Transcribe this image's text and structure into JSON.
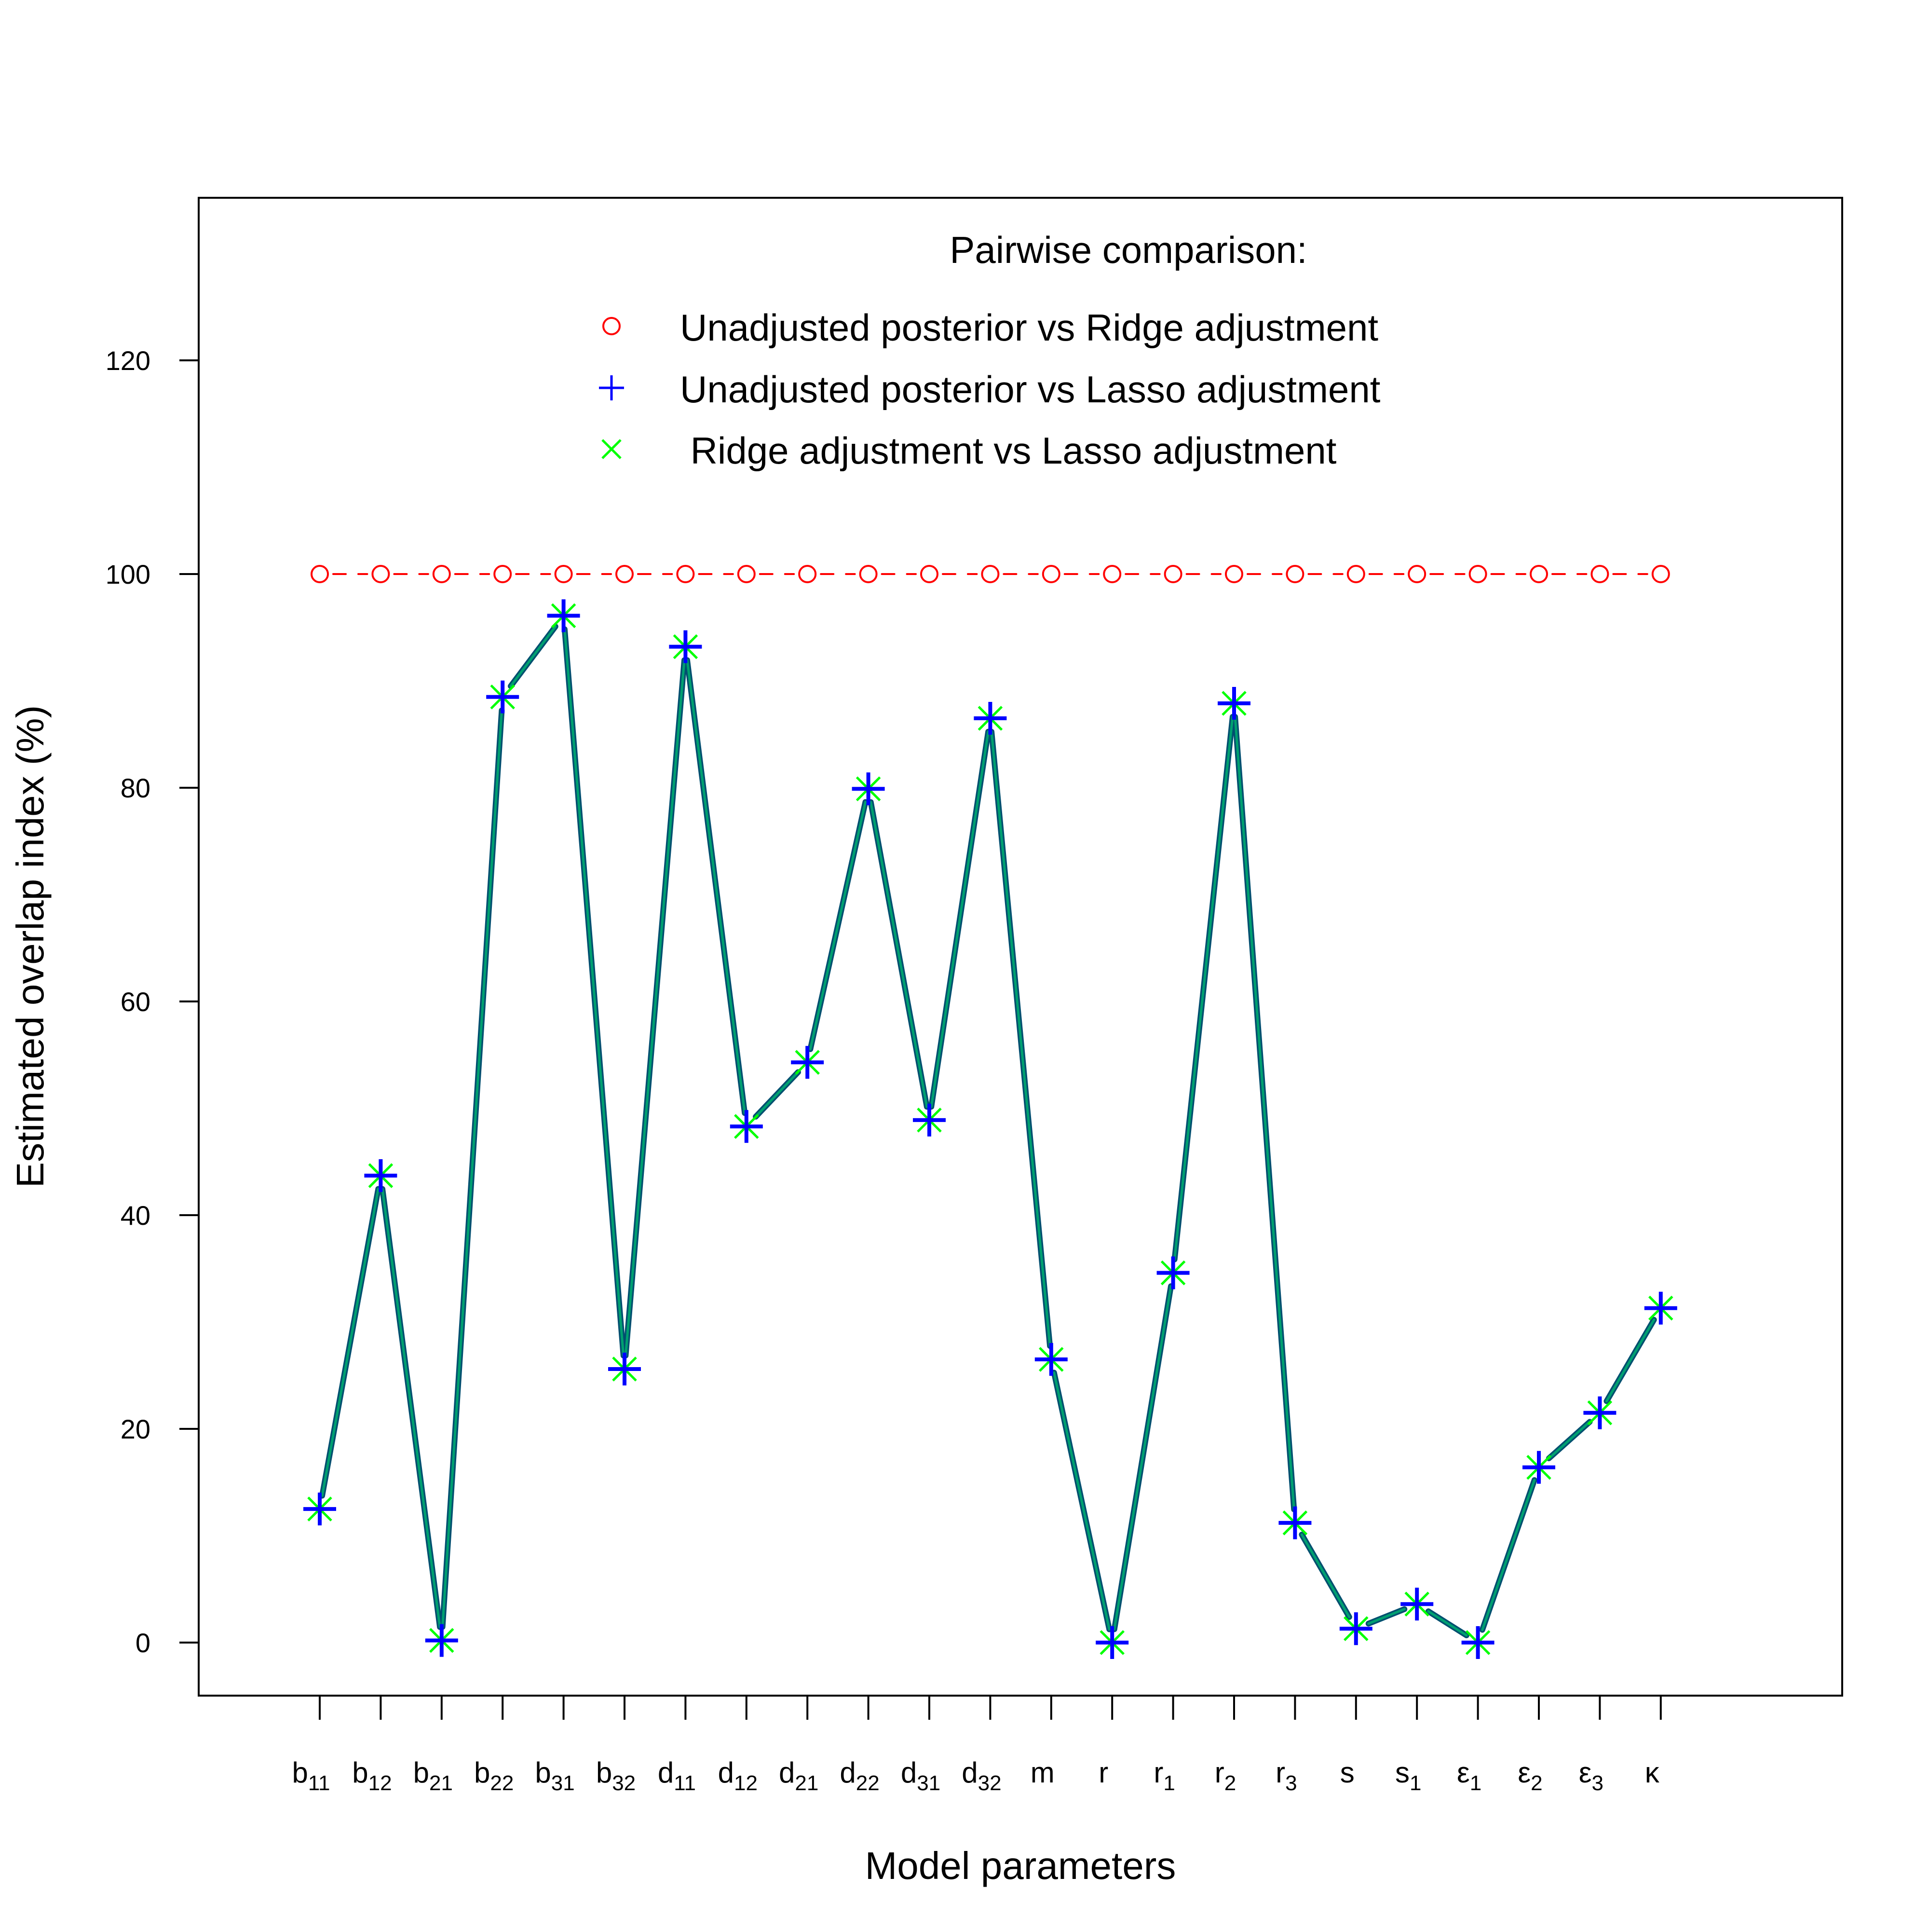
{
  "chart_data": {
    "type": "line",
    "xlabel": "Model parameters",
    "ylabel": "Estimated overlap index (%)",
    "ylim": [
      -5,
      140
    ],
    "yticks": [
      0,
      20,
      40,
      60,
      80,
      100,
      120
    ],
    "categories": [
      {
        "base": "b",
        "sub": "11"
      },
      {
        "base": "b",
        "sub": "12"
      },
      {
        "base": "b",
        "sub": "21"
      },
      {
        "base": "b",
        "sub": "22"
      },
      {
        "base": "b",
        "sub": "31"
      },
      {
        "base": "b",
        "sub": "32"
      },
      {
        "base": "d",
        "sub": "11"
      },
      {
        "base": "d",
        "sub": "12"
      },
      {
        "base": "d",
        "sub": "21"
      },
      {
        "base": "d",
        "sub": "22"
      },
      {
        "base": "d",
        "sub": "31"
      },
      {
        "base": "d",
        "sub": "32"
      },
      {
        "base": "m",
        "sub": ""
      },
      {
        "base": "r",
        "sub": ""
      },
      {
        "base": "r",
        "sub": "1"
      },
      {
        "base": "r",
        "sub": "2"
      },
      {
        "base": "r",
        "sub": "3"
      },
      {
        "base": "s",
        "sub": ""
      },
      {
        "base": "s",
        "sub": "1"
      },
      {
        "base": "ε",
        "sub": "1"
      },
      {
        "base": "ε",
        "sub": "2"
      },
      {
        "base": "ε",
        "sub": "3"
      },
      {
        "base": "κ",
        "sub": ""
      }
    ],
    "legend": {
      "title": "Pairwise comparison:",
      "position": "top"
    },
    "series": [
      {
        "name": "Unadjusted posterior vs Ridge adjustment",
        "marker": "circle",
        "color": "#ff0000",
        "line": "dashed",
        "values": [
          100,
          100,
          100,
          100,
          100,
          100,
          100,
          100,
          100,
          100,
          100,
          100,
          100,
          100,
          100,
          100,
          100,
          100,
          100,
          100,
          100,
          100,
          100
        ]
      },
      {
        "name": "Unadjusted posterior vs Lasso adjustment",
        "marker": "plus",
        "color": "#0000ff",
        "line": "solid",
        "values": [
          12.5,
          43.7,
          0.2,
          88.5,
          96.1,
          25.6,
          93.2,
          48.3,
          54.3,
          79.9,
          48.9,
          86.5,
          26.5,
          0.0,
          34.6,
          87.9,
          11.2,
          1.3,
          3.6,
          0.0,
          16.4,
          21.5,
          31.3
        ]
      },
      {
        "name": " Ridge adjustment vs Lasso adjustment",
        "marker": "x",
        "color": "#00ff00",
        "line": "solid",
        "values": [
          12.5,
          43.7,
          0.2,
          88.5,
          96.1,
          25.6,
          93.2,
          48.3,
          54.3,
          79.9,
          48.9,
          86.5,
          26.5,
          0.0,
          34.6,
          87.9,
          11.2,
          1.3,
          3.6,
          0.0,
          16.4,
          21.5,
          31.3
        ]
      }
    ],
    "grid": false
  }
}
